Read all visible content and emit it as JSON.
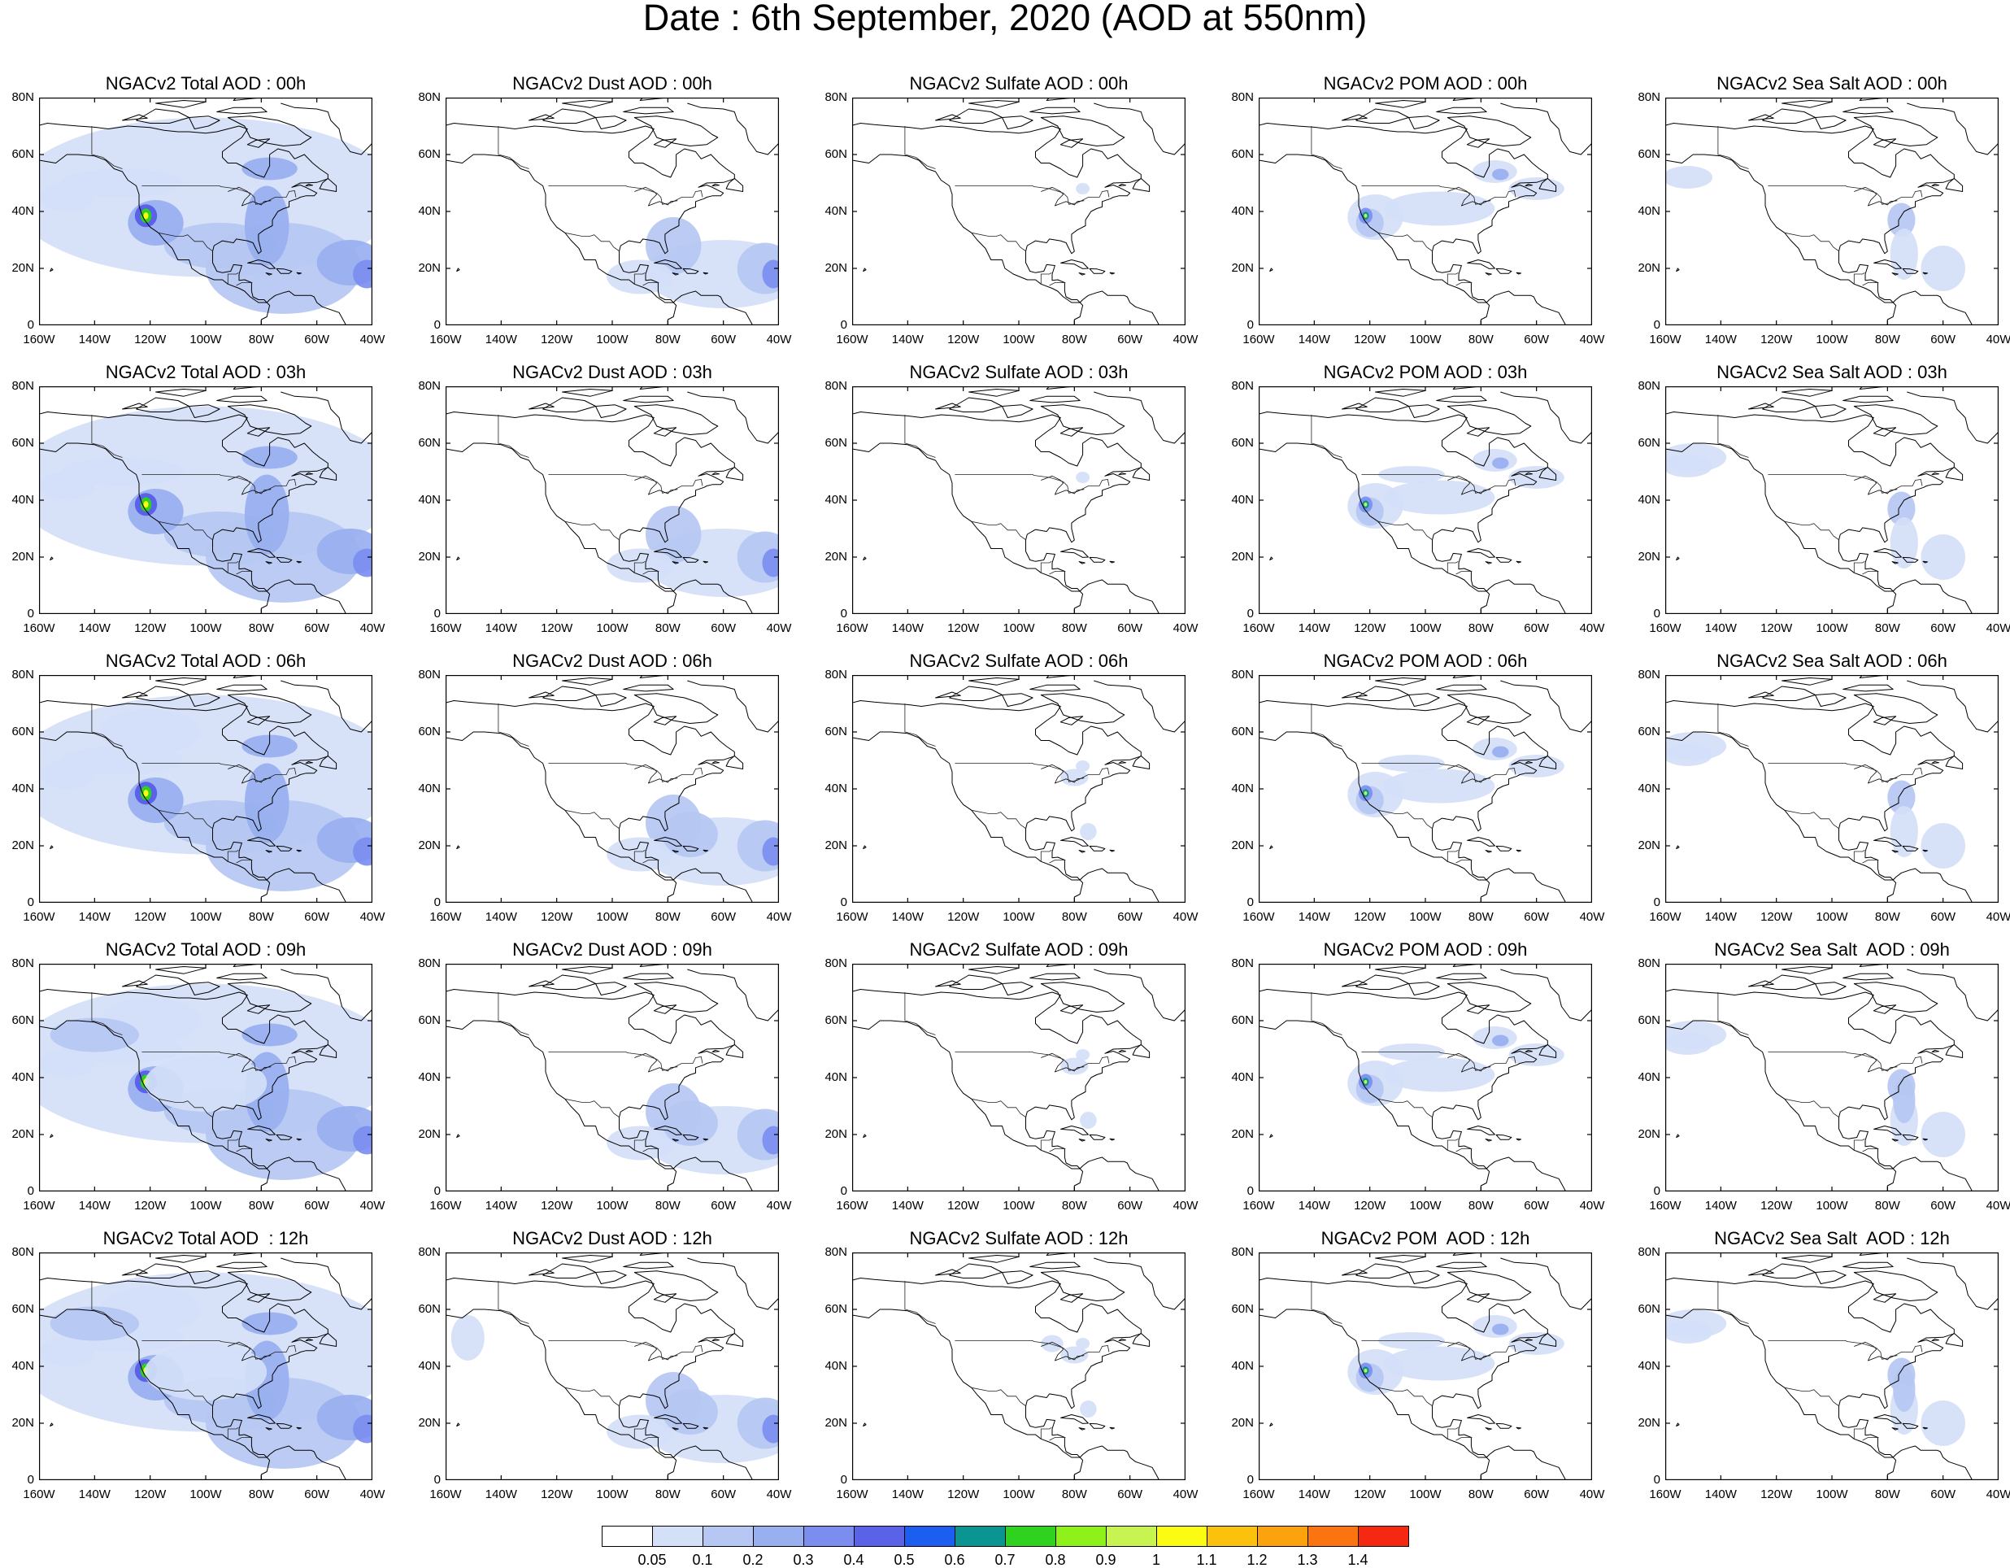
{
  "page_title": "Date : 6th September, 2020 (AOD at 550nm)",
  "lat_labels": [
    "80N",
    "60N",
    "40N",
    "20N",
    "0"
  ],
  "lon_labels": [
    "160W",
    "140W",
    "120W",
    "100W",
    "80W",
    "60W",
    "40W"
  ],
  "map_extent": {
    "lon": [
      -160,
      -40
    ],
    "lat": [
      0,
      80
    ]
  },
  "colorbar": {
    "labels": [
      "0.05",
      "0.1",
      "0.2",
      "0.3",
      "0.4",
      "0.5",
      "0.6",
      "0.7",
      "0.8",
      "0.9",
      "1",
      "1.1",
      "1.2",
      "1.3",
      "1.4"
    ],
    "colors": [
      "#ffffff",
      "#d4dff8",
      "#b5c7f2",
      "#98aff0",
      "#7b8ef0",
      "#5a62e8",
      "#1c5ef0",
      "#0a9492",
      "#2fd21e",
      "#8ef21a",
      "#c8f452",
      "#fcfc12",
      "#fcc10c",
      "#fca20c",
      "#fa7410",
      "#f52812"
    ]
  },
  "panels": [
    {
      "title": "NGACv2 Total AOD : 00h"
    },
    {
      "title": "NGACv2 Dust AOD : 00h"
    },
    {
      "title": "NGACv2 Sulfate AOD : 00h"
    },
    {
      "title": "NGACv2 POM AOD : 00h"
    },
    {
      "title": "NGACv2 Sea Salt AOD : 00h"
    },
    {
      "title": "NGACv2 Total AOD : 03h"
    },
    {
      "title": "NGACv2 Dust AOD : 03h"
    },
    {
      "title": "NGACv2 Sulfate AOD : 03h"
    },
    {
      "title": "NGACv2 POM AOD : 03h"
    },
    {
      "title": "NGACv2 Sea Salt AOD : 03h"
    },
    {
      "title": "NGACv2 Total AOD : 06h"
    },
    {
      "title": "NGACv2 Dust AOD : 06h"
    },
    {
      "title": "NGACv2 Sulfate AOD : 06h"
    },
    {
      "title": "NGACv2 POM AOD : 06h"
    },
    {
      "title": "NGACv2 Sea Salt AOD : 06h"
    },
    {
      "title": "NGACv2 Total AOD : 09h"
    },
    {
      "title": "NGACv2 Dust AOD : 09h"
    },
    {
      "title": "NGACv2 Sulfate AOD : 09h"
    },
    {
      "title": "NGACv2 POM AOD : 09h"
    },
    {
      "title": "NGACv2 Sea Salt  AOD : 09h"
    },
    {
      "title": "NGACv2 Total AOD  : 12h"
    },
    {
      "title": "NGACv2 Dust AOD : 12h"
    },
    {
      "title": "NGACv2 Sulfate AOD : 12h"
    },
    {
      "title": "NGACv2 POM  AOD : 12h"
    },
    {
      "title": "NGACv2 Sea Salt  AOD : 12h"
    }
  ]
}
